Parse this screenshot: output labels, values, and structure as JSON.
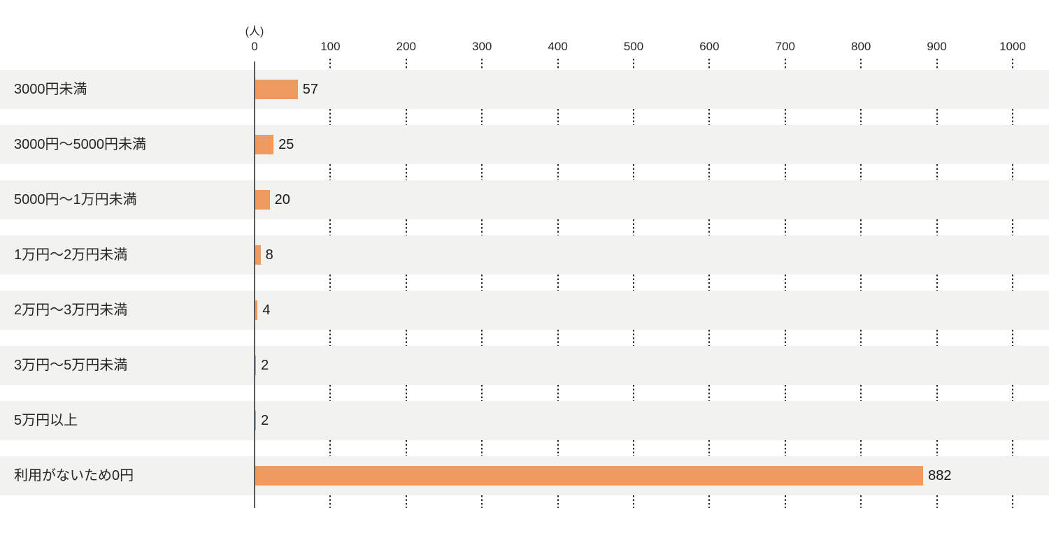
{
  "chart_data": {
    "type": "bar",
    "orientation": "horizontal",
    "title": "",
    "unit_label": "(人)",
    "categories": [
      "3000円未満",
      "3000円〜5000円未満",
      "5000円〜1万円未満",
      "1万円〜2万円未満",
      "2万円〜3万円未満",
      "3万円〜5万円未満",
      "5万円以上",
      "利用がないため0円"
    ],
    "values": [
      57,
      25,
      20,
      8,
      4,
      2,
      2,
      882
    ],
    "value_labels": [
      "57",
      "25",
      "20",
      "8",
      "4",
      "2",
      "2",
      "882"
    ],
    "x_ticks": [
      0,
      100,
      200,
      300,
      400,
      500,
      600,
      700,
      800,
      900,
      1000
    ],
    "xlim": [
      0,
      1000
    ],
    "xlabel": "",
    "ylabel": "",
    "legend": "none",
    "grid": "dotted-vertical-between-rows",
    "colors": {
      "bar": "#EE9A61",
      "row_background": "#F2F2F0",
      "page_background": "#FFFFFF",
      "text": "#262626",
      "axis_line": "#5A5A5A",
      "gridline_dots": "#2B2B2B"
    }
  }
}
